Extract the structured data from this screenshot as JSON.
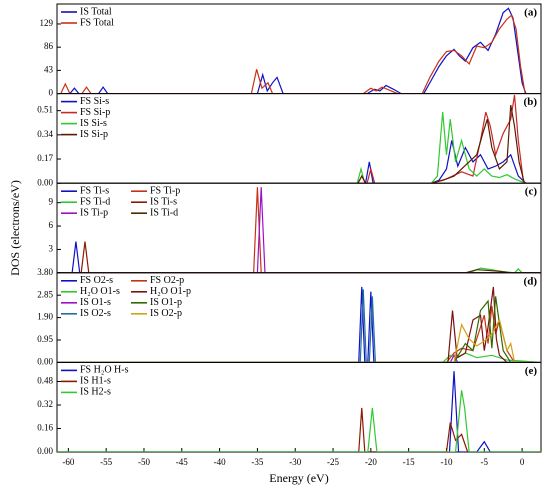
{
  "chart_data": [
    {
      "type": "line",
      "label": "(a)",
      "ylabel": "DOS (electrons/eV)",
      "xlim": [
        -61.5,
        2.5
      ],
      "ylim": [
        0,
        166
      ],
      "yticks": [
        0,
        43,
        86,
        129
      ],
      "series": [
        {
          "name": "IS Total",
          "color": "#1010c8",
          "x": [
            -61.5,
            -59.8,
            -59.2,
            -58.6,
            -56,
            -55.4,
            -54.8,
            -35,
            -34.3,
            -33.7,
            -33,
            -32.4,
            -31.6,
            -20.5,
            -19.5,
            -18.8,
            -18,
            -17,
            -16,
            -13,
            -12,
            -11,
            -10,
            -9,
            -8.3,
            -7.5,
            -6.5,
            -5.5,
            -4.5,
            -3.5,
            -2.5,
            -1.8,
            -1.2,
            -0.6,
            0,
            0.5,
            2.5
          ],
          "values": [
            0,
            0,
            10,
            0,
            0,
            12,
            0,
            0,
            35,
            5,
            20,
            30,
            0,
            0,
            8,
            5,
            15,
            8,
            0,
            0,
            25,
            50,
            70,
            82,
            70,
            60,
            85,
            95,
            80,
            110,
            150,
            158,
            140,
            80,
            20,
            0,
            0
          ]
        },
        {
          "name": "FS Total",
          "color": "#c83214",
          "x": [
            -61.5,
            -61,
            -60.4,
            -59.8,
            -58.2,
            -57.6,
            -57,
            -35.8,
            -35.1,
            -34.4,
            -33.6,
            -33,
            -21,
            -20,
            -19.3,
            -18.5,
            -17.5,
            -16.5,
            -13.2,
            -12.2,
            -11,
            -10,
            -9,
            -8,
            -7,
            -6,
            -5,
            -4,
            -3,
            -2,
            -1.4,
            -0.8,
            -0.2,
            0.4,
            2.5
          ],
          "values": [
            0,
            0,
            18,
            0,
            0,
            12,
            0,
            0,
            45,
            10,
            20,
            0,
            0,
            10,
            5,
            12,
            6,
            0,
            0,
            30,
            60,
            78,
            80,
            70,
            55,
            88,
            85,
            95,
            120,
            138,
            145,
            120,
            50,
            0,
            0
          ]
        }
      ]
    },
    {
      "type": "line",
      "label": "(b)",
      "xlim": [
        -61.5,
        2.5
      ],
      "ylim": [
        0,
        0.63
      ],
      "yticks": [
        {
          "value": 0,
          "label": "0.00"
        },
        {
          "value": 0.17,
          "label": "0.17"
        },
        {
          "value": 0.34,
          "label": "0.34"
        },
        {
          "value": 0.51,
          "label": "0.51"
        }
      ],
      "series": [
        {
          "name": "FS Si-s",
          "color": "#1010c8",
          "x": [
            -61.5,
            -20.7,
            -20.2,
            -19.7,
            -12,
            -11,
            -10,
            -9.3,
            -8.5,
            -7.5,
            -6.5,
            -5.5,
            -4.5,
            -3.5,
            -2.5,
            -1.5,
            -0.5,
            0.5,
            2.5
          ],
          "values": [
            0,
            0,
            0.15,
            0,
            0,
            0.02,
            0.1,
            0.3,
            0.12,
            0.25,
            0.15,
            0.2,
            0.1,
            0.12,
            0.15,
            0.2,
            0.05,
            0,
            0
          ]
        },
        {
          "name": "FS Si-p",
          "color": "#c82828",
          "x": [
            -61.5,
            -20.5,
            -20,
            -19.5,
            -12,
            -10,
            -8,
            -6.5,
            -5.5,
            -4.8,
            -4.2,
            -3.5,
            -2.5,
            -1.5,
            -1,
            -0.5,
            0.2,
            2.5
          ],
          "values": [
            0,
            0,
            0.1,
            0,
            0,
            0.03,
            0.08,
            0.05,
            0.3,
            0.5,
            0.4,
            0.2,
            0.35,
            0.45,
            0.62,
            0.3,
            0,
            0
          ]
        },
        {
          "name": "IS Si-s",
          "color": "#32c832",
          "x": [
            -61.5,
            -21.8,
            -21.3,
            -20.8,
            -12,
            -11.2,
            -10.5,
            -10,
            -9.5,
            -8.8,
            -8,
            -7,
            -6,
            -5,
            -4,
            -3,
            -2,
            -1,
            0,
            0.5,
            2.5
          ],
          "values": [
            0,
            0,
            0.1,
            0,
            0,
            0.05,
            0.5,
            0.2,
            0.45,
            0.15,
            0.3,
            0.1,
            0.05,
            0.1,
            0.05,
            0.04,
            0.06,
            0.03,
            0.01,
            0,
            0
          ]
        },
        {
          "name": "IS Si-p",
          "color": "#5a1a00",
          "x": [
            -61.5,
            -21.7,
            -21.2,
            -20.7,
            -12,
            -10.5,
            -9,
            -8,
            -7,
            -6,
            -5.2,
            -4.6,
            -4,
            -3,
            -2,
            -1.5,
            -1,
            -0.4,
            0.3,
            2.5
          ],
          "values": [
            0,
            0,
            0.05,
            0,
            0,
            0.02,
            0.05,
            0.1,
            0.15,
            0.2,
            0.35,
            0.45,
            0.25,
            0.1,
            0.15,
            0.55,
            0.4,
            0.15,
            0,
            0
          ]
        }
      ]
    },
    {
      "type": "line",
      "label": "(c)",
      "xlim": [
        -61.5,
        2.5
      ],
      "ylim": [
        0,
        11.5
      ],
      "yticks": [
        3,
        6,
        9
      ],
      "series": [
        {
          "name": "FS Ti-s",
          "color": "#1010c8",
          "x": [
            -61.5,
            -59.5,
            -59,
            -58.5,
            2.5
          ],
          "values": [
            0,
            0,
            4,
            0,
            0
          ]
        },
        {
          "name": "FS Ti-p",
          "color": "#c83214",
          "x": [
            -61.5,
            -35.5,
            -35,
            -34.5,
            2.5
          ],
          "values": [
            0,
            0,
            11,
            0,
            0
          ]
        },
        {
          "name": "FS Ti-d",
          "color": "#32c832",
          "x": [
            -61.5,
            -7,
            -5.5,
            -4,
            -3,
            -1,
            -0.5,
            0,
            2.5
          ],
          "values": [
            0,
            0,
            0.6,
            0.4,
            0.2,
            0,
            0.5,
            0,
            0
          ]
        },
        {
          "name": "IS Ti-s",
          "color": "#8b1a00",
          "x": [
            -61.5,
            -58.3,
            -57.8,
            -57.3,
            2.5
          ],
          "values": [
            0,
            0,
            4,
            0,
            0
          ]
        },
        {
          "name": "IS Ti-p",
          "color": "#9b10c8",
          "x": [
            -61.5,
            -35,
            -34.5,
            -34,
            2.5
          ],
          "values": [
            0,
            0,
            11,
            0,
            0
          ]
        },
        {
          "name": "IS Ti-d",
          "color": "#4d2a00",
          "x": [
            -61.5,
            -7.5,
            -6,
            -4.5,
            -3,
            -1.5,
            2.5
          ],
          "values": [
            0,
            0,
            0.4,
            0.3,
            0.2,
            0,
            0
          ]
        }
      ]
    },
    {
      "type": "line",
      "label": "(d)",
      "xlim": [
        -61.5,
        2.5
      ],
      "ylim": [
        0,
        3.8
      ],
      "yticks": [
        {
          "value": 0,
          "label": "0.00"
        },
        {
          "value": 0.95,
          "label": "0.95"
        },
        {
          "value": 1.9,
          "label": "1.90"
        },
        {
          "value": 2.85,
          "label": "2.85"
        },
        {
          "value": 3.8,
          "label": "3.80"
        }
      ],
      "series": [
        {
          "name": "FS O2-s",
          "color": "#1010c8",
          "x": [
            -61.5,
            -21.6,
            -21.2,
            -20.8,
            -20.4,
            -20,
            -19.6,
            2.5
          ],
          "values": [
            0,
            0,
            3.2,
            0,
            0,
            3.0,
            0,
            0
          ]
        },
        {
          "name": "FS O2-p",
          "color": "#c83214",
          "x": [
            -61.5,
            -10,
            -9,
            -8,
            -6.5,
            -5.5,
            -5,
            -4.5,
            -4,
            -3.5,
            -3,
            -2,
            -1,
            2.5
          ],
          "values": [
            0,
            0,
            0.4,
            0.6,
            0.5,
            1.5,
            2.0,
            0.8,
            2.4,
            1.2,
            1.8,
            0.5,
            0,
            0
          ]
        },
        {
          "name": "H₂O O1-s",
          "color": "#32c832",
          "x": [
            -61.5,
            -10.5,
            -9.5,
            -8.5,
            -7.5,
            -6,
            -4,
            -2,
            2.5
          ],
          "values": [
            0,
            0,
            0.3,
            0.2,
            0.4,
            0.2,
            0.3,
            0.1,
            0
          ]
        },
        {
          "name": "H₂O O1-p",
          "color": "#7a1010",
          "x": [
            -61.5,
            -9.8,
            -9.2,
            -8.6,
            -7.5,
            -6.5,
            -5.5,
            -5,
            -4.5,
            -3.8,
            -3.4,
            -3,
            -2,
            2.5
          ],
          "values": [
            0,
            0,
            2.2,
            0.2,
            0.4,
            1.8,
            2.0,
            0.5,
            1.5,
            3.2,
            1.0,
            0.3,
            0,
            0
          ]
        },
        {
          "name": "IS O1-s",
          "color": "#9b10c8",
          "x": [
            -61.5,
            -9.5,
            -9,
            -8.5,
            2.5
          ],
          "values": [
            0,
            0,
            0.3,
            0,
            0
          ]
        },
        {
          "name": "IS O1-p",
          "color": "#2e6b00",
          "x": [
            -61.5,
            -9,
            -7.5,
            -6.5,
            -5.5,
            -4.5,
            -4,
            -3.5,
            -2.5,
            -1.5,
            2.5
          ],
          "values": [
            0,
            0,
            0.8,
            0.5,
            2.2,
            2.6,
            0.6,
            2.8,
            0.5,
            0,
            0
          ]
        },
        {
          "name": "IS O2-s",
          "color": "#1f6fa0",
          "x": [
            -61.5,
            -21.4,
            -21,
            -20.6,
            -20.2,
            -19.8,
            -19.4,
            2.5
          ],
          "values": [
            0,
            0,
            3.1,
            0,
            0,
            2.8,
            0,
            0
          ]
        },
        {
          "name": "IS O2-p",
          "color": "#d4a017",
          "x": [
            -61.5,
            -9,
            -8,
            -7,
            -6,
            -5,
            -4,
            -3,
            -2,
            -1.5,
            -1,
            2.5
          ],
          "values": [
            0,
            0,
            1.6,
            1.0,
            0.7,
            0.9,
            1.2,
            1.8,
            0.5,
            0.8,
            0,
            0
          ]
        }
      ]
    },
    {
      "type": "line",
      "label": "(e)",
      "xlabel": "Energy (eV)",
      "xlim": [
        -61.5,
        2.5
      ],
      "ylim": [
        0,
        0.61
      ],
      "yticks": [
        {
          "value": 0,
          "label": "0.00"
        },
        {
          "value": 0.16,
          "label": "0.16"
        },
        {
          "value": 0.32,
          "label": "0.32"
        },
        {
          "value": 0.48,
          "label": "0.48"
        }
      ],
      "xticks": [
        -60,
        -55,
        -50,
        -45,
        -40,
        -35,
        -30,
        -25,
        -20,
        -15,
        -10,
        -5,
        0
      ],
      "series": [
        {
          "name": "FS H₂O H-s",
          "color": "#1010c8",
          "x": [
            -61.5,
            -9.6,
            -9,
            -8.4,
            -6,
            -5,
            -4.2,
            2.5
          ],
          "values": [
            0,
            0,
            0.55,
            0,
            0,
            0.07,
            0,
            0
          ]
        },
        {
          "name": "IS H1-s",
          "color": "#8b1a00",
          "x": [
            -61.5,
            -21.6,
            -21.2,
            -20.8,
            -10,
            -9.5,
            -8.8,
            -8,
            -7.2,
            2.5
          ],
          "values": [
            0,
            0,
            0.3,
            0,
            0,
            0.2,
            0.08,
            0.12,
            0,
            0
          ]
        },
        {
          "name": "IS H2-s",
          "color": "#32c832",
          "x": [
            -61.5,
            -20.4,
            -19.8,
            -19.2,
            -8.8,
            -8,
            -7.6,
            -7,
            2.5
          ],
          "values": [
            0,
            0,
            0.3,
            0,
            0,
            0.42,
            0.3,
            0,
            0
          ]
        }
      ]
    }
  ]
}
